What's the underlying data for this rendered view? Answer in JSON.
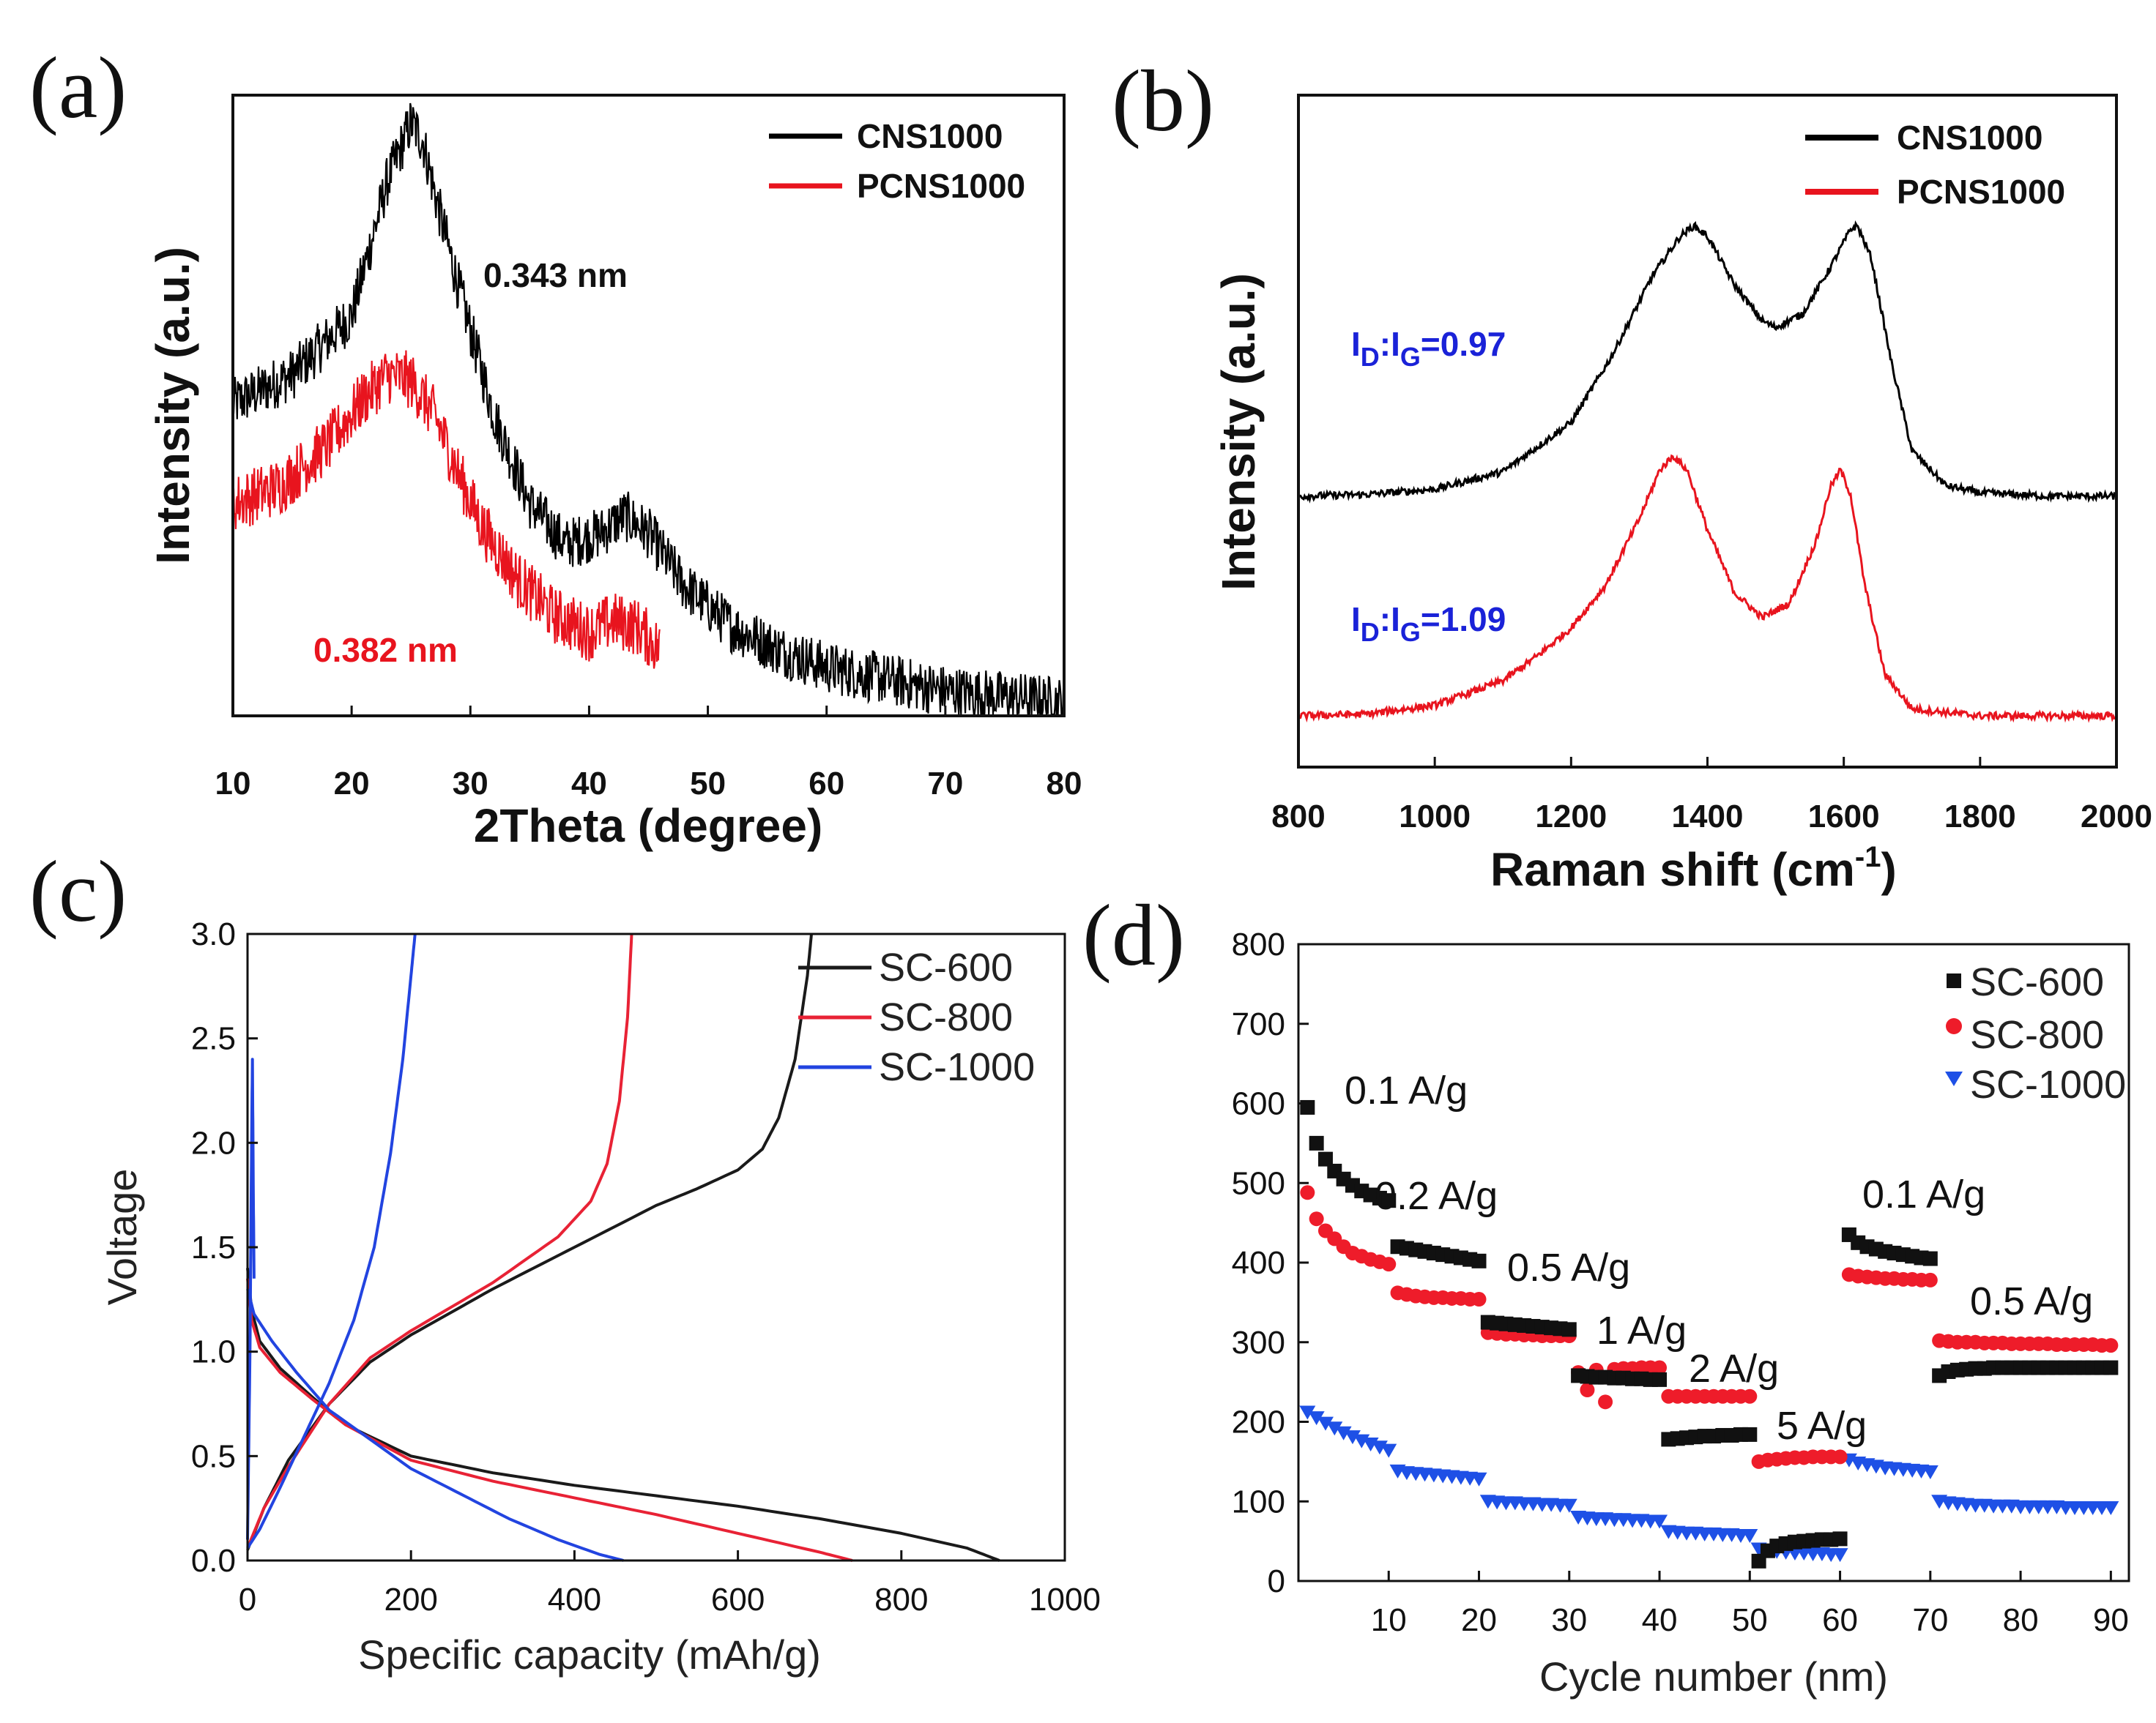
{
  "chart_data": [
    {
      "panel": "(a)",
      "type": "line",
      "title": "",
      "xlabel": "2Theta (degree)",
      "ylabel": "Intensity (a.u.)",
      "xlim": [
        10,
        80
      ],
      "xticks": [
        "10",
        "20",
        "30",
        "40",
        "50",
        "60",
        "70",
        "80"
      ],
      "legend": [
        "CNS1000",
        "PCNS1000"
      ],
      "legend_position": "top-right",
      "annotations": [
        {
          "text": "0.343 nm",
          "color": "#111111"
        },
        {
          "text": "0.382 nm",
          "color": "#e8141e"
        }
      ],
      "series": [
        {
          "name": "CNS1000",
          "color": "#000000",
          "x": [
            10,
            15,
            20,
            23,
            25,
            26,
            27,
            29,
            32,
            35,
            38,
            41,
            43,
            45,
            48,
            52,
            56,
            60,
            65,
            70,
            75,
            80
          ],
          "y": [
            0.52,
            0.57,
            0.67,
            0.9,
            1.0,
            0.97,
            0.88,
            0.72,
            0.5,
            0.35,
            0.28,
            0.3,
            0.33,
            0.3,
            0.21,
            0.14,
            0.1,
            0.07,
            0.05,
            0.03,
            0.02,
            0.01
          ]
        },
        {
          "name": "PCNS1000",
          "color": "#e8141e",
          "x": [
            10,
            14,
            18,
            21,
            23,
            25,
            27,
            29,
            31,
            34,
            37,
            40,
            42,
            44,
            46
          ],
          "y": [
            0.35,
            0.38,
            0.45,
            0.53,
            0.57,
            0.56,
            0.5,
            0.4,
            0.31,
            0.22,
            0.16,
            0.13,
            0.15,
            0.14,
            0.1
          ]
        }
      ]
    },
    {
      "panel": "(b)",
      "type": "line",
      "title": "",
      "xlabel": "Raman shift (cm",
      "xlabel_sup": "-1",
      "xlabel_end": ")",
      "ylabel": "Intensity (a.u.)",
      "xlim": [
        800,
        2000
      ],
      "xticks": [
        "800",
        "1000",
        "1200",
        "1400",
        "1600",
        "1800",
        "2000"
      ],
      "legend": [
        "CNS1000",
        "PCNS1000"
      ],
      "legend_position": "top-right",
      "annotations": [
        {
          "base": "I",
          "sub1": "D",
          "sep": ":I",
          "sub2": "G",
          "tail": "=0.97",
          "color": "#1a22d8"
        },
        {
          "base": "I",
          "sub1": "D",
          "sep": ":I",
          "sub2": "G",
          "tail": "=1.09",
          "color": "#1a22d8"
        }
      ],
      "series": [
        {
          "name": "CNS1000",
          "color": "#000000",
          "x": [
            800,
            900,
            1000,
            1100,
            1200,
            1260,
            1320,
            1360,
            1380,
            1400,
            1440,
            1480,
            1500,
            1540,
            1580,
            1610,
            1620,
            1640,
            1670,
            1700,
            1750,
            1800,
            1900,
            2000
          ],
          "y": [
            0.0,
            0.005,
            0.02,
            0.07,
            0.21,
            0.4,
            0.63,
            0.74,
            0.77,
            0.74,
            0.6,
            0.5,
            0.48,
            0.52,
            0.65,
            0.76,
            0.77,
            0.68,
            0.38,
            0.13,
            0.03,
            0.01,
            0.0,
            0.0
          ]
        },
        {
          "name": "PCNS1000",
          "color": "#e8141e",
          "x": [
            800,
            900,
            1000,
            1100,
            1150,
            1200,
            1250,
            1300,
            1330,
            1350,
            1370,
            1400,
            1440,
            1480,
            1520,
            1560,
            1580,
            1595,
            1610,
            1630,
            1660,
            1700,
            1800,
            1900,
            2000
          ],
          "y": [
            0.0,
            0.005,
            0.03,
            0.1,
            0.17,
            0.25,
            0.37,
            0.56,
            0.7,
            0.74,
            0.7,
            0.53,
            0.35,
            0.28,
            0.32,
            0.5,
            0.65,
            0.7,
            0.63,
            0.38,
            0.12,
            0.02,
            0.0,
            0.0,
            0.0
          ]
        }
      ]
    },
    {
      "panel": "(c)",
      "type": "line",
      "title": "",
      "xlabel": "Specific capacity (mAh/g)",
      "ylabel": "Voltage",
      "xlim": [
        0,
        1000
      ],
      "ylim": [
        0,
        3
      ],
      "xticks": [
        "0",
        "200",
        "400",
        "600",
        "800",
        "1000"
      ],
      "yticks": [
        "0.0",
        "0.5",
        "1.0",
        "1.5",
        "2.0",
        "2.5",
        "3.0"
      ],
      "legend": [
        "SC-600",
        "SC-800",
        "SC-1000"
      ],
      "legend_position": "top-right",
      "series": [
        {
          "name": "SC-600",
          "color": "#1a1a1a",
          "part": "discharge",
          "x": [
            0,
            5,
            15,
            40,
            80,
            120,
            200,
            300,
            400,
            500,
            600,
            700,
            800,
            880,
            920
          ],
          "y": [
            1.4,
            1.2,
            1.05,
            0.92,
            0.78,
            0.65,
            0.5,
            0.42,
            0.36,
            0.31,
            0.26,
            0.2,
            0.13,
            0.06,
            0.0
          ]
        },
        {
          "name": "SC-600",
          "color": "#1a1a1a",
          "part": "charge",
          "x": [
            0,
            20,
            50,
            100,
            150,
            200,
            300,
            400,
            500,
            550,
            600,
            630,
            650,
            670,
            685,
            690
          ],
          "y": [
            0.05,
            0.25,
            0.48,
            0.75,
            0.95,
            1.08,
            1.3,
            1.5,
            1.7,
            1.78,
            1.87,
            1.97,
            2.12,
            2.4,
            2.8,
            3.0
          ]
        },
        {
          "name": "SC-800",
          "color": "#e82235",
          "part": "discharge",
          "x": [
            0,
            5,
            15,
            40,
            80,
            120,
            200,
            300,
            400,
            500,
            600,
            700,
            740
          ],
          "y": [
            1.35,
            1.15,
            1.02,
            0.9,
            0.77,
            0.65,
            0.48,
            0.38,
            0.3,
            0.22,
            0.13,
            0.04,
            0.0
          ]
        },
        {
          "name": "SC-800",
          "color": "#e82235",
          "part": "charge",
          "x": [
            0,
            20,
            50,
            100,
            150,
            200,
            300,
            380,
            420,
            440,
            455,
            465,
            470
          ],
          "y": [
            0.06,
            0.25,
            0.45,
            0.75,
            0.97,
            1.1,
            1.33,
            1.55,
            1.72,
            1.9,
            2.2,
            2.6,
            3.0
          ]
        },
        {
          "name": "SC-1000",
          "color": "#2244e0",
          "part": "discharge",
          "x": [
            0,
            8,
            30,
            60,
            100,
            150,
            200,
            260,
            320,
            380,
            430,
            460
          ],
          "y": [
            1.3,
            1.18,
            1.05,
            0.9,
            0.72,
            0.58,
            0.44,
            0.32,
            0.2,
            0.1,
            0.03,
            0.0
          ]
        },
        {
          "name": "SC-1000",
          "color": "#2244e0",
          "part": "charge",
          "x": [
            0,
            15,
            40,
            70,
            100,
            130,
            155,
            175,
            190,
            200,
            205
          ],
          "y": [
            0.06,
            0.15,
            0.35,
            0.6,
            0.85,
            1.15,
            1.5,
            1.95,
            2.4,
            2.8,
            3.0
          ]
        },
        {
          "name": "SC-1000",
          "color": "#2244e0",
          "part": "initial",
          "x": [
            0,
            3,
            5,
            6,
            7,
            8
          ],
          "y": [
            0.1,
            1.0,
            2.0,
            2.4,
            1.8,
            1.35
          ]
        }
      ]
    },
    {
      "panel": "(d)",
      "type": "scatter",
      "title": "",
      "xlabel": "Cycle number (nm)",
      "ylabel": "",
      "xlim": [
        0,
        92
      ],
      "ylim": [
        0,
        800
      ],
      "xticks": [
        "10",
        "20",
        "30",
        "40",
        "50",
        "60",
        "70",
        "80",
        "90"
      ],
      "yticks": [
        "0",
        "100",
        "200",
        "300",
        "400",
        "500",
        "600",
        "700",
        "800"
      ],
      "legend": [
        "SC-600",
        "SC-800",
        "SC-1000"
      ],
      "legend_position": "top-right",
      "annotations": [
        "0.1 A/g",
        "0.2 A/g",
        "0.5 A/g",
        "1 A/g",
        "2 A/g",
        "5 A/g",
        "0.1 A/g",
        "0.5 A/g"
      ],
      "series": [
        {
          "name": "SC-600",
          "color": "#111111",
          "marker": "square",
          "y": [
            595,
            550,
            530,
            515,
            505,
            497,
            490,
            485,
            481,
            478,
            420,
            418,
            416,
            414,
            412,
            410,
            408,
            406,
            404,
            402,
            325,
            324,
            323,
            322,
            321,
            320,
            319,
            318,
            317,
            316,
            258,
            257,
            256,
            256,
            255,
            255,
            254,
            254,
            253,
            253,
            178,
            179,
            180,
            181,
            182,
            182,
            183,
            183,
            184,
            184,
            25,
            38,
            44,
            47,
            49,
            50,
            51,
            52,
            52,
            53,
            435,
            425,
            420,
            417,
            414,
            412,
            410,
            408,
            406,
            405,
            258,
            263,
            265,
            266,
            267,
            267,
            268,
            268,
            268,
            268,
            268,
            268,
            268,
            268,
            268,
            268,
            268,
            268,
            268,
            268
          ]
        },
        {
          "name": "SC-800",
          "color": "#ee1c2a",
          "marker": "circle",
          "y": [
            488,
            455,
            440,
            430,
            420,
            412,
            408,
            404,
            401,
            398,
            362,
            360,
            358,
            357,
            356,
            356,
            355,
            355,
            354,
            354,
            312,
            311,
            310,
            310,
            309,
            309,
            308,
            308,
            308,
            308,
            262,
            240,
            265,
            225,
            266,
            267,
            267,
            268,
            268,
            268,
            232,
            232,
            232,
            232,
            232,
            232,
            232,
            232,
            232,
            232,
            150,
            152,
            153,
            154,
            155,
            155,
            156,
            156,
            156,
            156,
            385,
            383,
            382,
            381,
            380,
            380,
            379,
            379,
            378,
            378,
            302,
            301,
            300,
            300,
            300,
            299,
            299,
            299,
            298,
            298,
            298,
            298,
            298,
            297,
            297,
            297,
            297,
            297,
            296,
            296
          ]
        },
        {
          "name": "SC-1000",
          "color": "#1e50e6",
          "marker": "triangle-down",
          "y": [
            212,
            205,
            198,
            192,
            186,
            181,
            176,
            172,
            168,
            164,
            138,
            136,
            135,
            134,
            133,
            132,
            131,
            130,
            129,
            128,
            100,
            99,
            98,
            98,
            97,
            97,
            96,
            96,
            95,
            95,
            80,
            79,
            78,
            78,
            77,
            77,
            76,
            76,
            75,
            75,
            62,
            61,
            60,
            60,
            59,
            59,
            58,
            58,
            57,
            57,
            40,
            38,
            37,
            36,
            35,
            35,
            34,
            34,
            33,
            33,
            152,
            148,
            146,
            144,
            142,
            141,
            140,
            139,
            138,
            137,
            100,
            98,
            97,
            96,
            95,
            95,
            94,
            94,
            94,
            93,
            93,
            93,
            93,
            93,
            92,
            92,
            92,
            92,
            92,
            92
          ]
        }
      ]
    }
  ]
}
